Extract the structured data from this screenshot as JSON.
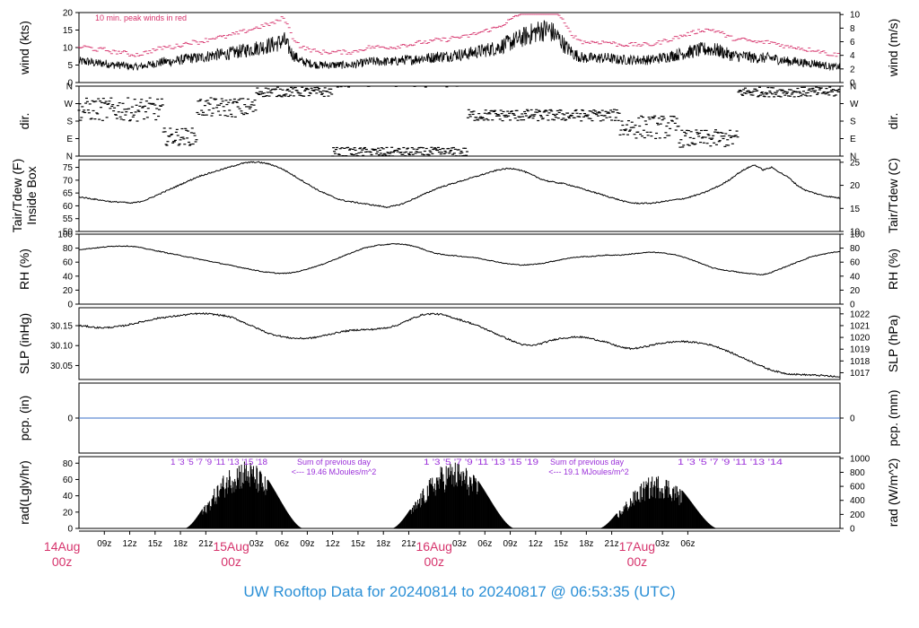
{
  "title": "UW Rooftop Data for 20240814  to  20240817 @ 06:53:35  (UTC)",
  "colors": {
    "peak": "#d6336c",
    "series": "#000000",
    "precip_line": "#3a6fc8",
    "radiation_note": "#9b30d9",
    "title": "#2a8fd6",
    "day_label": "#d6336c"
  },
  "chart_data": {
    "type": "line",
    "time_axis": {
      "hour_ticks": [
        "09z",
        "12z",
        "15z",
        "18z",
        "21z",
        "03z",
        "06z",
        "09z",
        "12z",
        "15z",
        "18z",
        "21z",
        "03z",
        "06z",
        "09z",
        "12z",
        "15z",
        "18z",
        "21z",
        "03z",
        "06z"
      ],
      "day_labels": [
        {
          "day": "14Aug",
          "hour": "00z"
        },
        {
          "day": "15Aug",
          "hour": "00z"
        },
        {
          "day": "16Aug",
          "hour": "00z"
        },
        {
          "day": "17Aug",
          "hour": "00z"
        }
      ]
    },
    "panels": [
      {
        "name": "wind",
        "ylabel_left": "wind (kts)",
        "ylabel_right": "wind (m/s)",
        "left_ticks": [
          "0",
          "5",
          "10",
          "15",
          "20"
        ],
        "right_ticks": [
          "0",
          "2",
          "4",
          "6",
          "8",
          "10"
        ],
        "ylim": [
          0,
          20
        ],
        "annotation": "10 min. peak winds in red",
        "series": [
          {
            "values_hourly_kts": [
              6,
              6,
              5.5,
              5.5,
              5,
              5,
              4.5,
              4.5,
              5,
              5.5,
              6,
              6,
              6.5,
              7,
              7,
              7.5,
              8,
              8,
              8.5,
              9,
              9.5,
              10,
              10.5,
              11,
              12,
              8,
              6,
              5.5,
              5,
              5,
              5,
              5,
              5,
              5.5,
              6,
              6,
              6,
              6,
              6.5,
              6.5,
              7,
              7,
              7.5,
              7.5,
              8,
              8,
              8.5,
              9,
              9.5,
              10,
              11,
              12,
              13,
              14,
              15,
              15,
              13,
              10,
              8,
              7,
              7,
              7,
              7,
              6.5,
              6.5,
              6.5,
              6.5,
              6.5,
              7,
              7.5,
              8,
              8.5,
              9,
              9.5,
              9.5,
              9,
              8,
              7.5,
              7.5,
              7,
              7,
              7,
              6.5,
              6,
              6,
              5.5,
              5.5,
              5,
              4.5,
              4.5
            ]
          }
        ]
      },
      {
        "name": "direction",
        "ylabel_left": "dir.",
        "ylabel_right": "dir.",
        "left_ticks": [
          "N",
          "E",
          "S",
          "W",
          "N"
        ],
        "right_ticks": [
          "N",
          "E",
          "S",
          "W",
          "N"
        ],
        "ylim": [
          0,
          360
        ]
      },
      {
        "name": "temperature",
        "ylabel_left": "Tair/Tdew (F)\nInside Box",
        "ylabel_right": "Tair/Tdew (C)",
        "left_ticks": [
          "50",
          "55",
          "60",
          "65",
          "70",
          "75"
        ],
        "right_ticks": [
          "10",
          "15",
          "20",
          "25"
        ],
        "ylim": [
          50,
          78
        ],
        "series": [
          {
            "values_hourly_F": [
              63.5,
              63,
              62.5,
              62,
              61.5,
              61.5,
              61,
              61.5,
              62.5,
              64,
              65.5,
              67,
              68.5,
              70,
              71.5,
              72.5,
              73.5,
              74.5,
              75.5,
              76.5,
              77,
              77,
              76.5,
              75.5,
              74,
              72,
              70,
              68,
              66,
              64.5,
              63,
              62,
              61.5,
              61,
              60.5,
              60,
              59.5,
              60,
              61,
              62.5,
              64,
              65.5,
              67,
              68,
              69,
              70,
              71,
              72,
              73,
              74,
              74.5,
              74.5,
              73.5,
              72,
              70.5,
              69.5,
              69,
              68.5,
              67.5,
              66.5,
              65.5,
              64.5,
              63.5,
              62.5,
              61.5,
              61,
              61,
              61,
              61.5,
              62,
              62.5,
              63,
              64,
              65,
              66.5,
              68,
              70,
              72.5,
              74.5,
              76,
              74,
              75,
              73,
              71,
              68,
              66,
              65,
              64,
              63.5,
              63
            ]
          }
        ]
      },
      {
        "name": "rh",
        "ylabel_left": "RH (%)",
        "ylabel_right": "RH (%)",
        "left_ticks": [
          "0",
          "20",
          "40",
          "60",
          "80",
          "100"
        ],
        "right_ticks": [
          "0",
          "20",
          "40",
          "60",
          "80",
          "100"
        ],
        "ylim": [
          0,
          100
        ],
        "series": [
          {
            "values_hourly_pct": [
              78,
              79,
              80,
              81,
              82,
              83,
              83,
              83,
              82,
              80,
              78,
              76,
              74,
              72,
              70,
              68,
              66,
              64,
              62,
              60,
              58,
              56,
              54,
              52,
              50,
              48,
              46,
              45,
              44,
              44,
              45,
              47,
              50,
              53,
              56,
              60,
              64,
              68,
              72,
              76,
              80,
              82,
              84,
              85,
              86,
              86,
              85,
              83,
              80,
              76,
              73,
              71,
              70,
              69,
              68,
              67,
              66,
              64,
              62,
              60,
              58,
              57,
              56,
              56,
              57,
              58,
              60,
              62,
              64,
              66,
              67,
              68,
              68,
              69,
              70,
              70,
              70,
              71,
              72,
              73,
              74,
              74,
              73,
              72,
              70,
              67,
              64,
              60,
              56,
              52,
              50,
              48,
              47,
              45,
              44,
              43,
              42,
              44,
              48,
              52,
              56,
              60,
              64,
              68,
              70,
              72,
              74,
              75
            ]
          }
        ]
      },
      {
        "name": "slp",
        "ylabel_left": "SLP (inHg)",
        "ylabel_right": "SLP (hPa)",
        "left_ticks": [
          "30.05",
          "30.10",
          "30.15"
        ],
        "right_ticks": [
          "1017",
          "1018",
          "1019",
          "1020",
          "1021",
          "1022"
        ],
        "ylim": [
          30.015,
          30.195
        ],
        "series": [
          {
            "values_hourly_inHg": [
              30.15,
              30.148,
              30.145,
              30.145,
              30.147,
              30.15,
              30.155,
              30.16,
              30.165,
              30.17,
              30.172,
              30.175,
              30.178,
              30.18,
              30.18,
              30.178,
              30.175,
              30.17,
              30.16,
              30.15,
              30.14,
              30.13,
              30.125,
              30.12,
              30.118,
              30.118,
              30.12,
              30.125,
              30.13,
              30.135,
              30.138,
              30.14,
              30.14,
              30.142,
              30.145,
              30.15,
              30.16,
              30.17,
              30.178,
              30.18,
              30.178,
              30.172,
              30.165,
              30.158,
              30.15,
              30.14,
              30.13,
              30.12,
              30.11,
              30.102,
              30.1,
              30.105,
              30.112,
              30.118,
              30.12,
              30.122,
              30.12,
              30.115,
              30.11,
              30.102,
              30.095,
              30.092,
              30.095,
              30.1,
              30.105,
              30.108,
              30.11,
              30.11,
              30.108,
              30.105,
              30.1,
              30.092,
              30.082,
              30.072,
              30.062,
              30.052,
              30.042,
              30.035,
              30.03,
              30.028,
              30.027,
              30.026,
              30.025,
              30.023,
              30.021
            ]
          }
        ]
      },
      {
        "name": "precip",
        "ylabel_left": "pcp. (in)",
        "ylabel_right": "pcp. (mm)",
        "left_ticks": [
          "0"
        ],
        "right_ticks": [
          "0"
        ],
        "ylim": [
          -1,
          1
        ],
        "series": [
          {
            "value": 0
          }
        ]
      },
      {
        "name": "radiation",
        "ylabel_left": "rad(Lgly/hr)",
        "ylabel_right": "rad (W/m^2)",
        "left_ticks": [
          "0",
          "20",
          "40",
          "60",
          "80"
        ],
        "right_ticks": [
          "0",
          "200",
          "400",
          "600",
          "800",
          "1000"
        ],
        "ylim": [
          0,
          88
        ],
        "days": [
          {
            "start": 12.5,
            "end": 26.5,
            "peak": 85
          },
          {
            "start": 37,
            "end": 51.5,
            "peak": 83
          },
          {
            "start": 61.5,
            "end": 75.5,
            "peak": 66
          }
        ],
        "hour_markers": [
          {
            "text": "1  '3  '5  '7  '9  '11  '13  '15  '18"
          },
          {
            "text": "1  '3  '5  '7  '9  '11  '13  '15  '19"
          },
          {
            "text": "1  '3  '5  '7  '9  '11  '13  '14"
          }
        ],
        "notes": [
          {
            "line1": "Sum of previous day",
            "line2": "<--- 19.46 MJoules/m^2"
          },
          {
            "line1": "Sum of previous day",
            "line2": "<--- 19.1 MJoules/m^2"
          }
        ]
      }
    ]
  }
}
